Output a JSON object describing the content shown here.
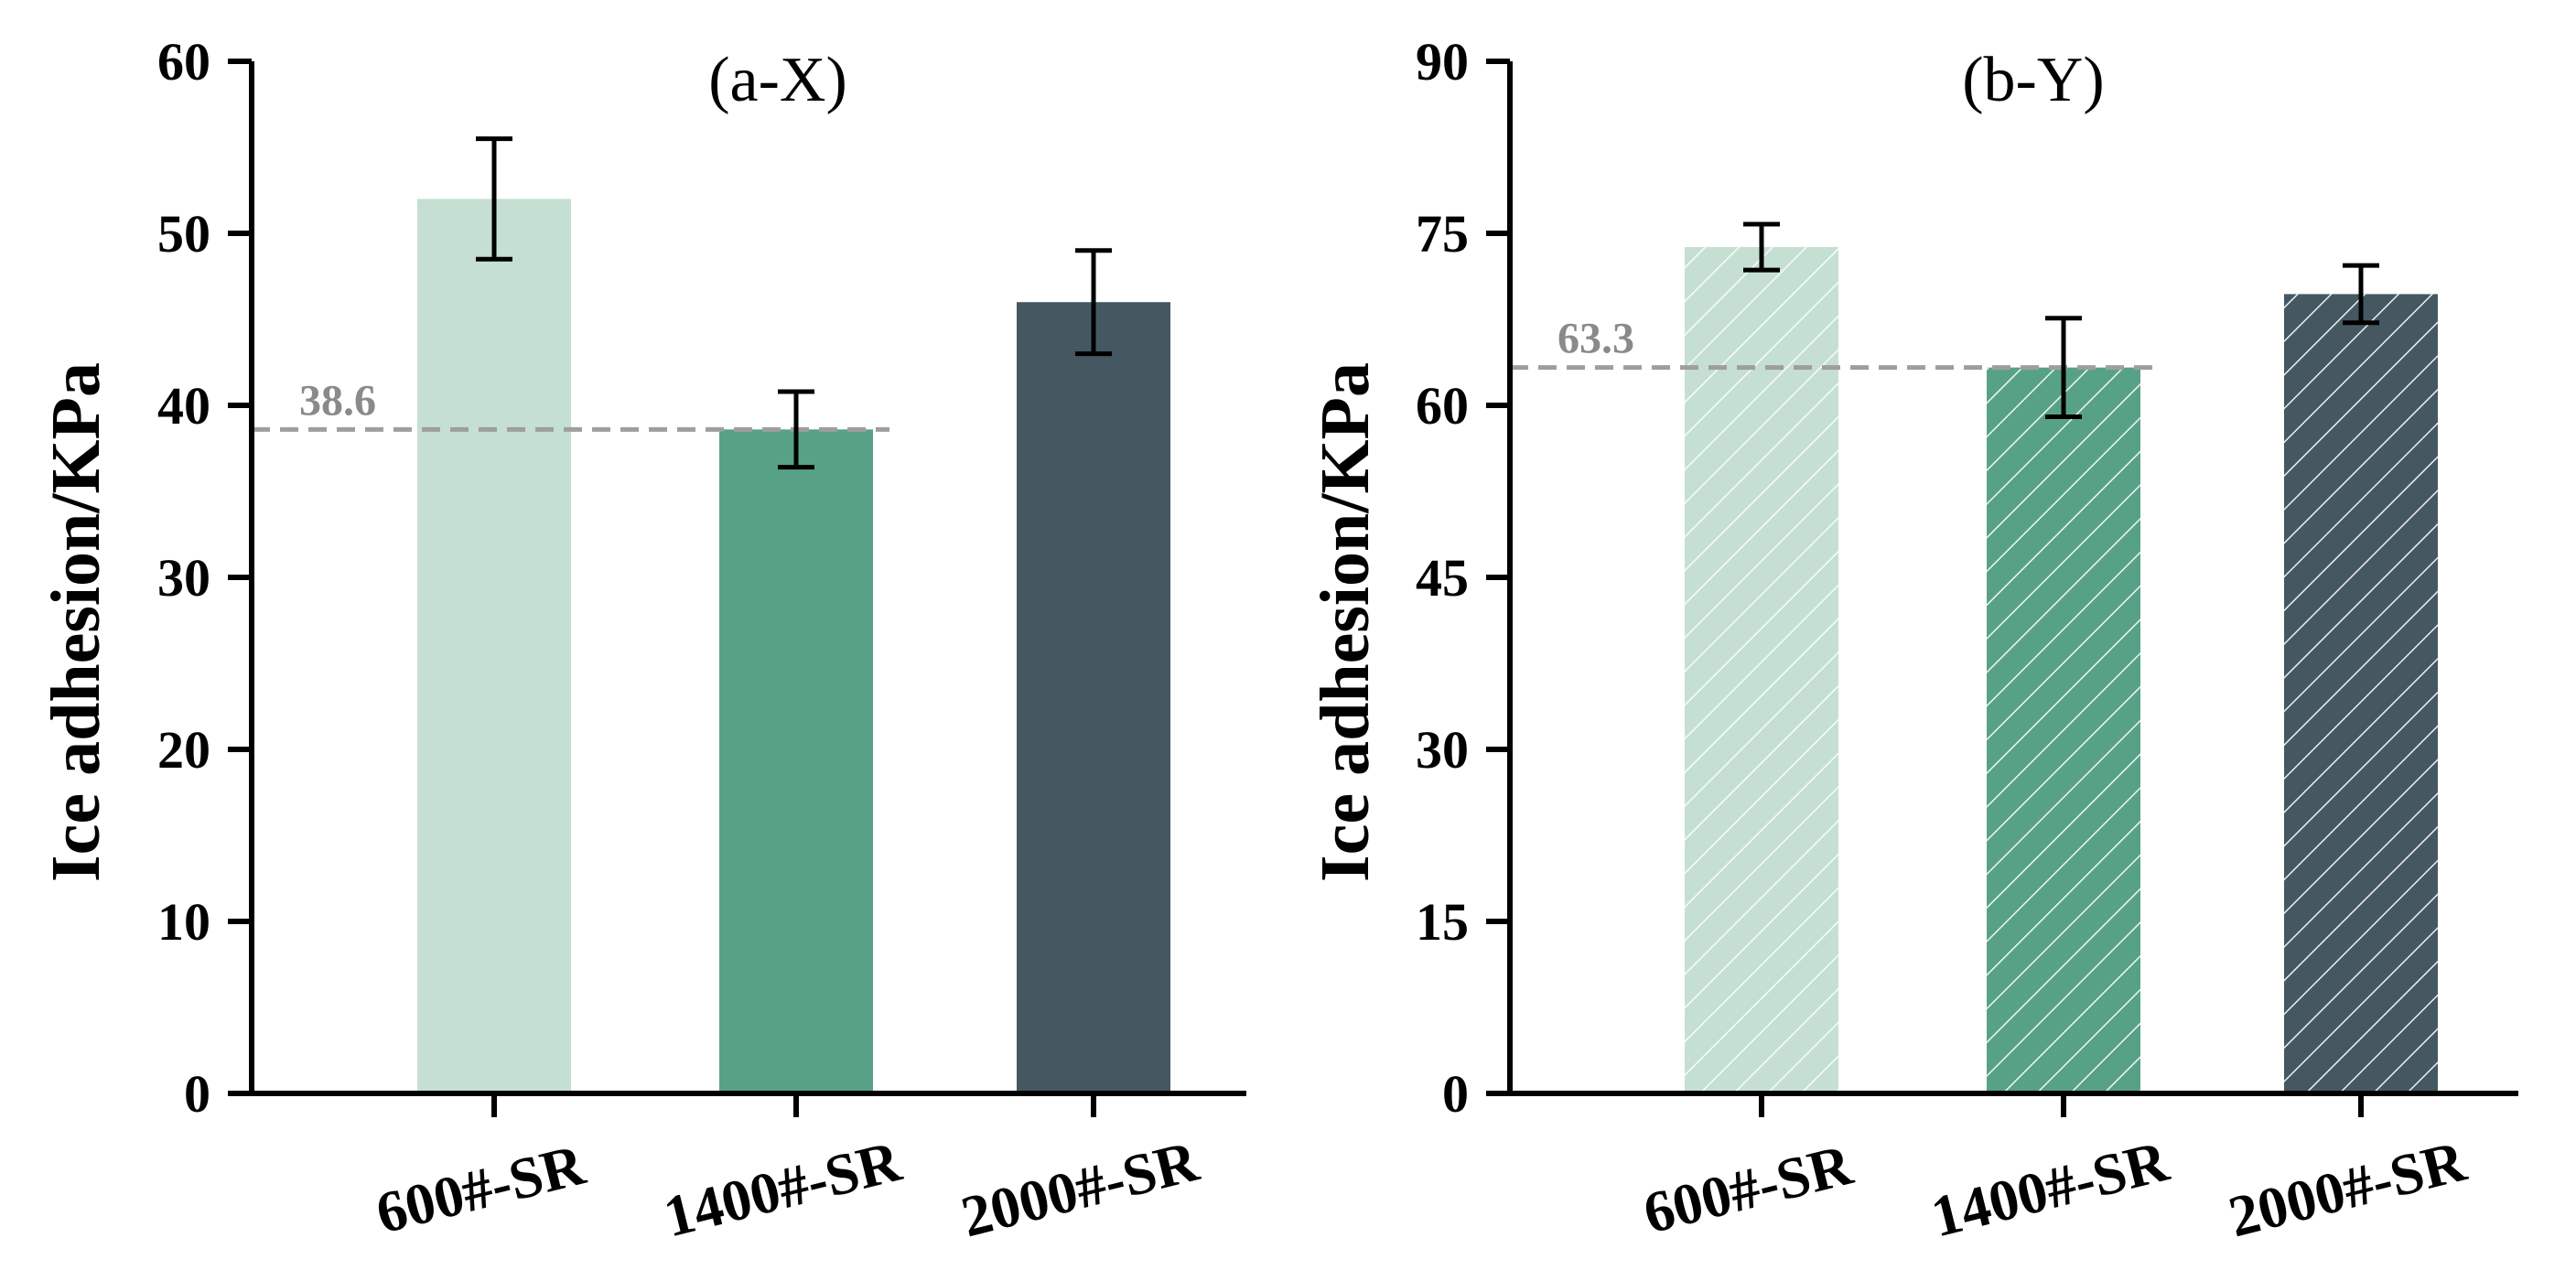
{
  "chart_data": [
    {
      "type": "bar",
      "title": "(a-X)",
      "ylabel": "Ice adhesion/KPa",
      "xlabel": "",
      "ylim": [
        0,
        60
      ],
      "yticks": [
        0,
        10,
        20,
        30,
        40,
        50,
        60
      ],
      "categories": [
        "600#-SR",
        "1400#-SR",
        "2000#-SR"
      ],
      "values": [
        52.0,
        38.6,
        46.0
      ],
      "errors": [
        3.5,
        2.2,
        3.0
      ],
      "colors": [
        "#c5e0d3",
        "#57a286",
        "#455862"
      ],
      "hatched": false,
      "reference_line": {
        "value": 38.6,
        "label": "38.6",
        "style": "dashed"
      }
    },
    {
      "type": "bar",
      "title": "(b-Y)",
      "ylabel": "Ice adhesion/KPa",
      "xlabel": "",
      "ylim": [
        0,
        90
      ],
      "yticks": [
        0,
        15,
        30,
        45,
        60,
        75,
        90
      ],
      "categories": [
        "600#-SR",
        "1400#-SR",
        "2000#-SR"
      ],
      "values": [
        73.8,
        63.3,
        69.7
      ],
      "errors": [
        2.0,
        4.3,
        2.5
      ],
      "colors": [
        "#c5e0d3",
        "#57a286",
        "#455862"
      ],
      "hatched": true,
      "reference_line": {
        "value": 63.3,
        "label": "63.3",
        "style": "dashed"
      }
    }
  ]
}
